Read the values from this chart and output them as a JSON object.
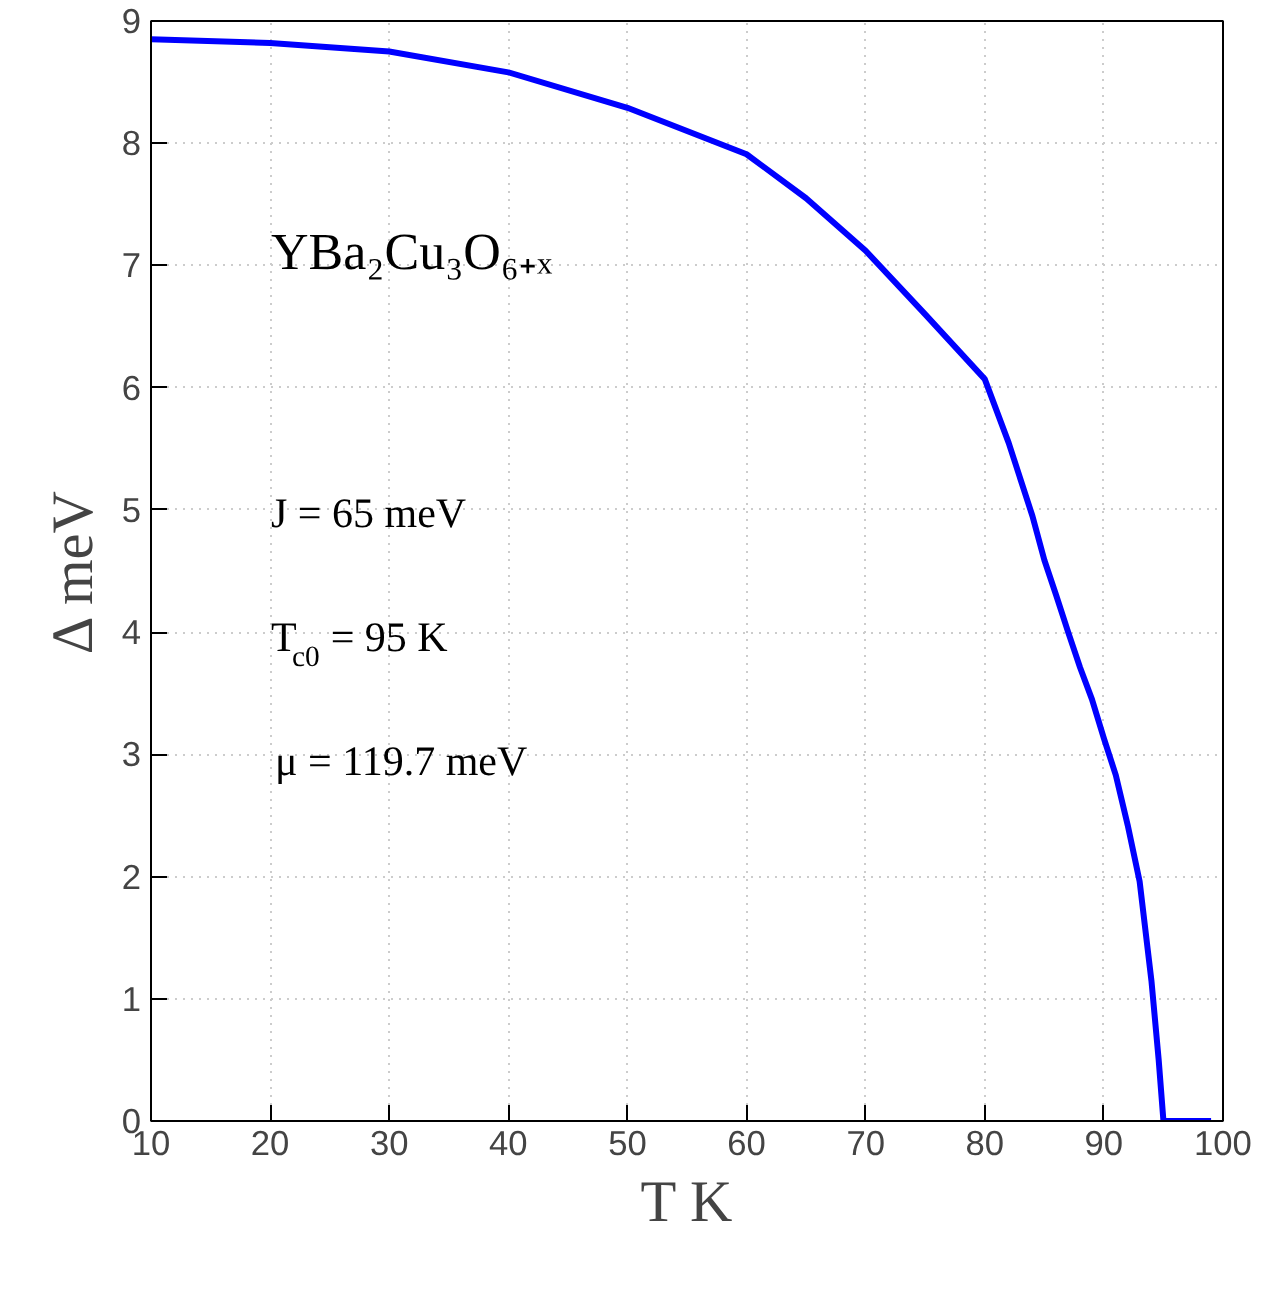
{
  "chart_data": {
    "type": "line",
    "xlabel": "T K",
    "ylabel": "Δ meV",
    "annotations": [
      "YBa₂Cu₃O₆₊ₓ",
      "J = 65 meV",
      "T$_{c0}$ = 95 K",
      "μ = 119.7 meV"
    ],
    "x": [
      10,
      20,
      30,
      40,
      50,
      60,
      65,
      70,
      75,
      80,
      82,
      84,
      85,
      86,
      87,
      88,
      89,
      90,
      91,
      92,
      93,
      94,
      94.6,
      95,
      99
    ],
    "series": [
      {
        "color": "#0000ff",
        "values": [
          8.85,
          8.82,
          8.75,
          8.58,
          8.29,
          7.91,
          7.55,
          7.12,
          6.6,
          6.07,
          5.55,
          4.95,
          4.59,
          4.3,
          4.0,
          3.71,
          3.45,
          3.13,
          2.83,
          2.42,
          1.96,
          1.14,
          0.5,
          0,
          0
        ]
      }
    ],
    "xlim": [
      10,
      100
    ],
    "ylim": [
      0,
      9
    ],
    "xticks": [
      10,
      20,
      30,
      40,
      50,
      60,
      70,
      80,
      90,
      100
    ],
    "yticks": [
      0,
      1,
      2,
      3,
      4,
      5,
      6,
      7,
      8,
      9
    ],
    "grid": true,
    "marker": "none",
    "line_style": "solid"
  }
}
